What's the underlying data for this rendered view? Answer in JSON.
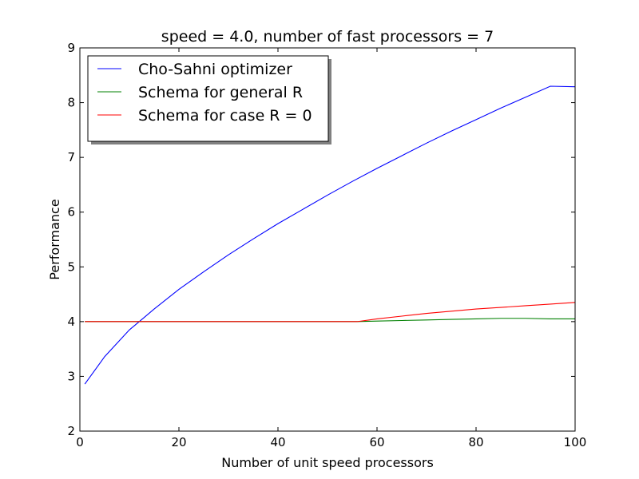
{
  "chart_data": {
    "type": "line",
    "title": "speed = 4.0, number of fast processors = 7",
    "xlabel": "Number of unit speed processors",
    "ylabel": "Performance",
    "xlim": [
      0,
      100
    ],
    "ylim": [
      2,
      9
    ],
    "xticks": [
      0,
      20,
      40,
      60,
      80,
      100
    ],
    "yticks": [
      2,
      3,
      4,
      5,
      6,
      7,
      8,
      9
    ],
    "grid": false,
    "legend_position": "top-left",
    "series": [
      {
        "name": "Cho-Sahni optimizer",
        "color": "#0000ff",
        "x": [
          1,
          5,
          10,
          12,
          15,
          20,
          25,
          30,
          35,
          40,
          45,
          50,
          55,
          60,
          65,
          70,
          75,
          80,
          85,
          90,
          95,
          100
        ],
        "y": [
          2.86,
          3.36,
          3.85,
          4.0,
          4.23,
          4.59,
          4.91,
          5.22,
          5.51,
          5.79,
          6.05,
          6.31,
          6.56,
          6.8,
          7.03,
          7.26,
          7.48,
          7.69,
          7.9,
          8.1,
          8.3,
          8.29
        ]
      },
      {
        "name": "Schema for general R",
        "color": "#008000",
        "x": [
          1,
          10,
          20,
          30,
          40,
          50,
          56,
          60,
          65,
          70,
          75,
          80,
          85,
          90,
          95,
          100
        ],
        "y": [
          4.0,
          4.0,
          4.0,
          4.0,
          4.0,
          4.0,
          4.0,
          4.01,
          4.02,
          4.03,
          4.04,
          4.05,
          4.06,
          4.06,
          4.05,
          4.05
        ]
      },
      {
        "name": "Schema for case R = 0",
        "color": "#ff0000",
        "x": [
          1,
          10,
          20,
          30,
          40,
          50,
          56,
          60,
          65,
          70,
          75,
          80,
          85,
          90,
          95,
          100
        ],
        "y": [
          4.0,
          4.0,
          4.0,
          4.0,
          4.0,
          4.0,
          4.0,
          4.05,
          4.1,
          4.15,
          4.19,
          4.23,
          4.26,
          4.29,
          4.32,
          4.35
        ]
      }
    ]
  }
}
